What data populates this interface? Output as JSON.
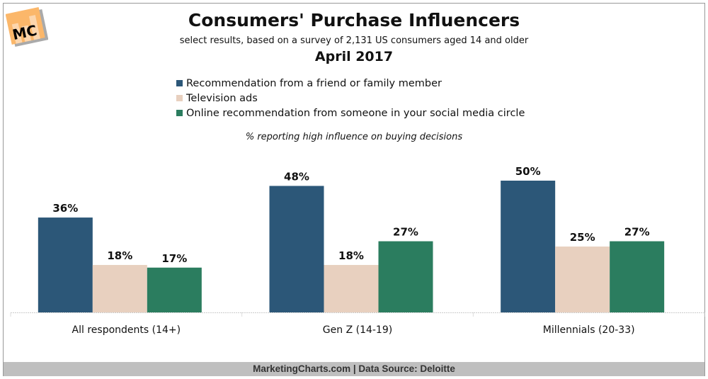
{
  "header": {
    "title": "Consumers' Purchase Influencers",
    "subtitle": "select results, based on a survey of 2,131 US consumers aged 14 and older",
    "date": "April 2017",
    "note": "% reporting high influence on buying decisions"
  },
  "logo": {
    "text": "MC"
  },
  "footer": {
    "text": "MarketingCharts.com | Data Source: Deloitte"
  },
  "chart_data": {
    "type": "bar",
    "title": "Consumers' Purchase Influencers",
    "categories": [
      "All respondents (14+)",
      "Gen Z (14-19)",
      "Millennials (20-33)"
    ],
    "series": [
      {
        "name": "Recommendation from a friend or family member",
        "values": [
          36,
          48,
          50
        ],
        "labels": [
          "36%",
          "48%",
          "50%"
        ],
        "color": "#2c5778"
      },
      {
        "name": "Television ads",
        "values": [
          18,
          18,
          25
        ],
        "labels": [
          "18%",
          "18%",
          "25%"
        ],
        "color": "#e8d0bf"
      },
      {
        "name": "Online recommendation from someone in your social media circle",
        "values": [
          17,
          27,
          27
        ],
        "labels": [
          "17%",
          "27%",
          "27%"
        ],
        "color": "#2b7d5f"
      }
    ],
    "ylim": [
      0,
      50
    ],
    "xlabel": "",
    "ylabel": "",
    "grid": false,
    "legend_position": "top-center"
  }
}
